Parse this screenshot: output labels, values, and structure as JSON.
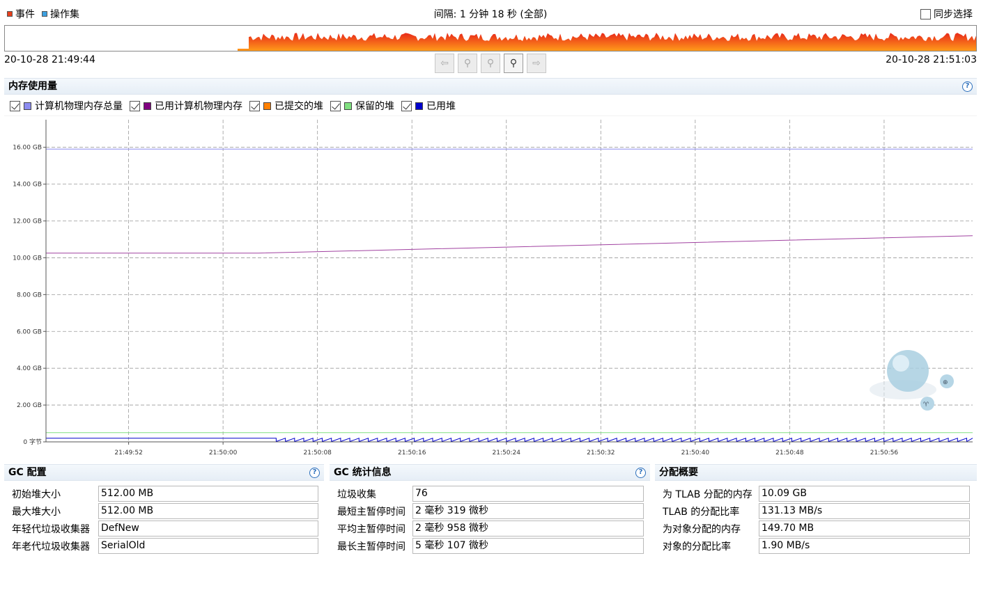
{
  "top": {
    "legend": [
      {
        "label": "事件",
        "color": "#e8401c"
      },
      {
        "label": "操作集",
        "color": "#3ca0e0"
      }
    ],
    "interval_label": "间隔: 1 分钟 18 秒 (全部)",
    "sync_label": "同步选择",
    "start_time": "20-10-28 21:49:44",
    "end_time": "20-10-28 21:51:03",
    "nav_buttons": [
      {
        "name": "back-icon",
        "glyph": "⇦",
        "enabled": false
      },
      {
        "name": "zoom-in-icon",
        "glyph": "⚲",
        "enabled": false
      },
      {
        "name": "zoom-out-icon",
        "glyph": "⚲",
        "enabled": false
      },
      {
        "name": "zoom-select-icon",
        "glyph": "⚲",
        "enabled": true
      },
      {
        "name": "forward-icon",
        "glyph": "⇨",
        "enabled": false
      }
    ]
  },
  "memory_panel": {
    "title": "内存使用量",
    "help": "?",
    "series_legend": [
      {
        "label": "计算机物理内存总量",
        "color": "#8c8cf0",
        "checked": true
      },
      {
        "label": "已用计算机物理内存",
        "color": "#800080",
        "checked": true
      },
      {
        "label": "已提交的堆",
        "color": "#ff8000",
        "checked": true
      },
      {
        "label": "保留的堆",
        "color": "#80e080",
        "checked": true
      },
      {
        "label": "已用堆",
        "color": "#0000cc",
        "checked": true
      }
    ]
  },
  "chart_data": {
    "type": "line",
    "ylim": [
      0,
      17.5
    ],
    "y_ticks": [
      0,
      2,
      4,
      6,
      8,
      10,
      12,
      14,
      16
    ],
    "y_tick_labels": [
      "0 字节",
      "2.00 GB",
      "4.00 GB",
      "6.00 GB",
      "8.00 GB",
      "10.00 GB",
      "12.00 GB",
      "14.00 GB",
      "16.00 GB"
    ],
    "x_ticks": [
      "21:49:52",
      "21:50:00",
      "21:50:08",
      "21:50:16",
      "21:50:24",
      "21:50:32",
      "21:50:40",
      "21:50:48",
      "21:50:56"
    ],
    "x_range_seconds": [
      -7,
      71.5
    ],
    "series": [
      {
        "name": "计算机物理内存总量",
        "color": "#8c8cf0",
        "points": [
          [
            -7,
            15.9
          ],
          [
            71.5,
            15.9
          ]
        ]
      },
      {
        "name": "已用计算机物理内存",
        "color": "#a040a0",
        "points": [
          [
            -7,
            10.25
          ],
          [
            11,
            10.25
          ],
          [
            71.5,
            11.2
          ]
        ]
      },
      {
        "name": "保留的堆",
        "color": "#80e080",
        "points": [
          [
            -7,
            0.5
          ],
          [
            71.5,
            0.5
          ]
        ]
      },
      {
        "name": "已用堆",
        "color": "#0000cc",
        "sawtooth": {
          "start": 12.5,
          "end": 71.5,
          "period": 0.78,
          "min": 0.02,
          "max": 0.2
        }
      }
    ],
    "grid": true
  },
  "gc_config": {
    "title": "GC 配置",
    "help": "?",
    "rows": [
      {
        "label": "初始堆大小",
        "value": "512.00 MB"
      },
      {
        "label": "最大堆大小",
        "value": "512.00 MB"
      },
      {
        "label": "年轻代垃圾收集器",
        "value": "DefNew"
      },
      {
        "label": "年老代垃圾收集器",
        "value": "SerialOld"
      }
    ]
  },
  "gc_stats": {
    "title": "GC 统计信息",
    "help": "?",
    "rows": [
      {
        "label": "垃圾收集",
        "value": "76"
      },
      {
        "label": "最短主暂停时间",
        "value": "2 毫秒 319 微秒"
      },
      {
        "label": "平均主暂停时间",
        "value": "2 毫秒 958 微秒"
      },
      {
        "label": "最长主暂停时间",
        "value": "5 毫秒 107 微秒"
      }
    ]
  },
  "alloc_summary": {
    "title": "分配概要",
    "rows": [
      {
        "label": "为 TLAB 分配的内存",
        "value": "10.09 GB"
      },
      {
        "label": "TLAB 的分配比率",
        "value": "131.13 MB/s"
      },
      {
        "label": "为对象分配的内存",
        "value": "149.70 MB"
      },
      {
        "label": "对象的分配比率",
        "value": "1.90 MB/s"
      }
    ]
  }
}
